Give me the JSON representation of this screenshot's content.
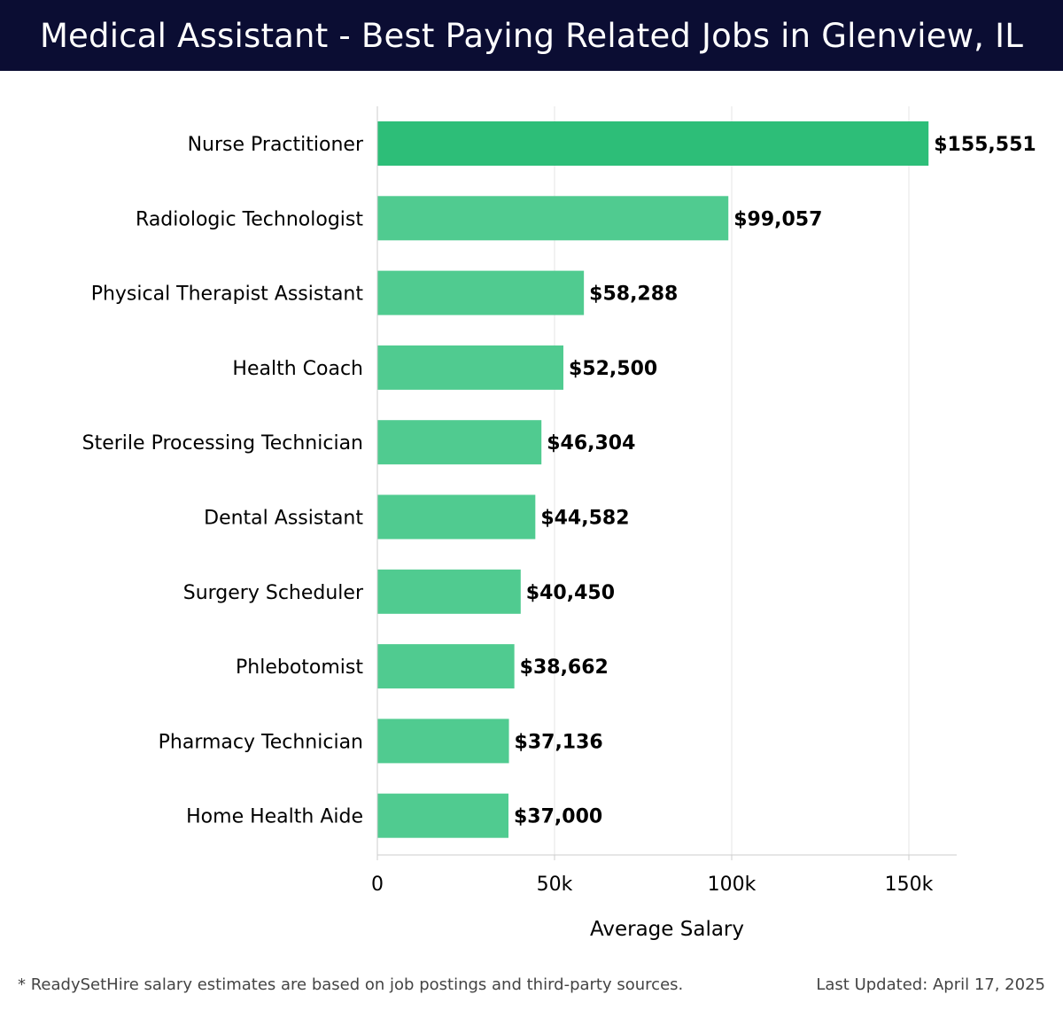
{
  "header": {
    "title": "Medical Assistant - Best Paying Related Jobs in Glenview, IL"
  },
  "colors": {
    "header_bg": "#0b0d33",
    "bar_top": "#2dbe78",
    "bar": "#50cb90",
    "grid": "#e6e6e6",
    "axis": "#cccccc",
    "text": "#000000"
  },
  "chart_data": {
    "type": "bar",
    "orientation": "horizontal",
    "categories": [
      "Nurse Practitioner",
      "Radiologic Technologist",
      "Physical Therapist Assistant",
      "Health Coach",
      "Sterile Processing Technician",
      "Dental Assistant",
      "Surgery Scheduler",
      "Phlebotomist",
      "Pharmacy Technician",
      "Home Health Aide"
    ],
    "values": [
      155551,
      99057,
      58288,
      52500,
      46304,
      44582,
      40450,
      38662,
      37136,
      37000
    ],
    "value_labels": [
      "$155,551",
      "$99,057",
      "$58,288",
      "$52,500",
      "$46,304",
      "$44,582",
      "$40,450",
      "$38,662",
      "$37,136",
      "$37,000"
    ],
    "xlabel": "Average Salary",
    "ylabel": "",
    "xlim": [
      0,
      163500
    ],
    "xticks": [
      0,
      50000,
      100000,
      150000
    ],
    "xtick_labels": [
      "0",
      "50k",
      "100k",
      "150k"
    ],
    "grid": true
  },
  "footer": {
    "note": "* ReadySetHire salary estimates are based on job postings and third-party sources.",
    "updated": "Last Updated: April 17, 2025"
  }
}
